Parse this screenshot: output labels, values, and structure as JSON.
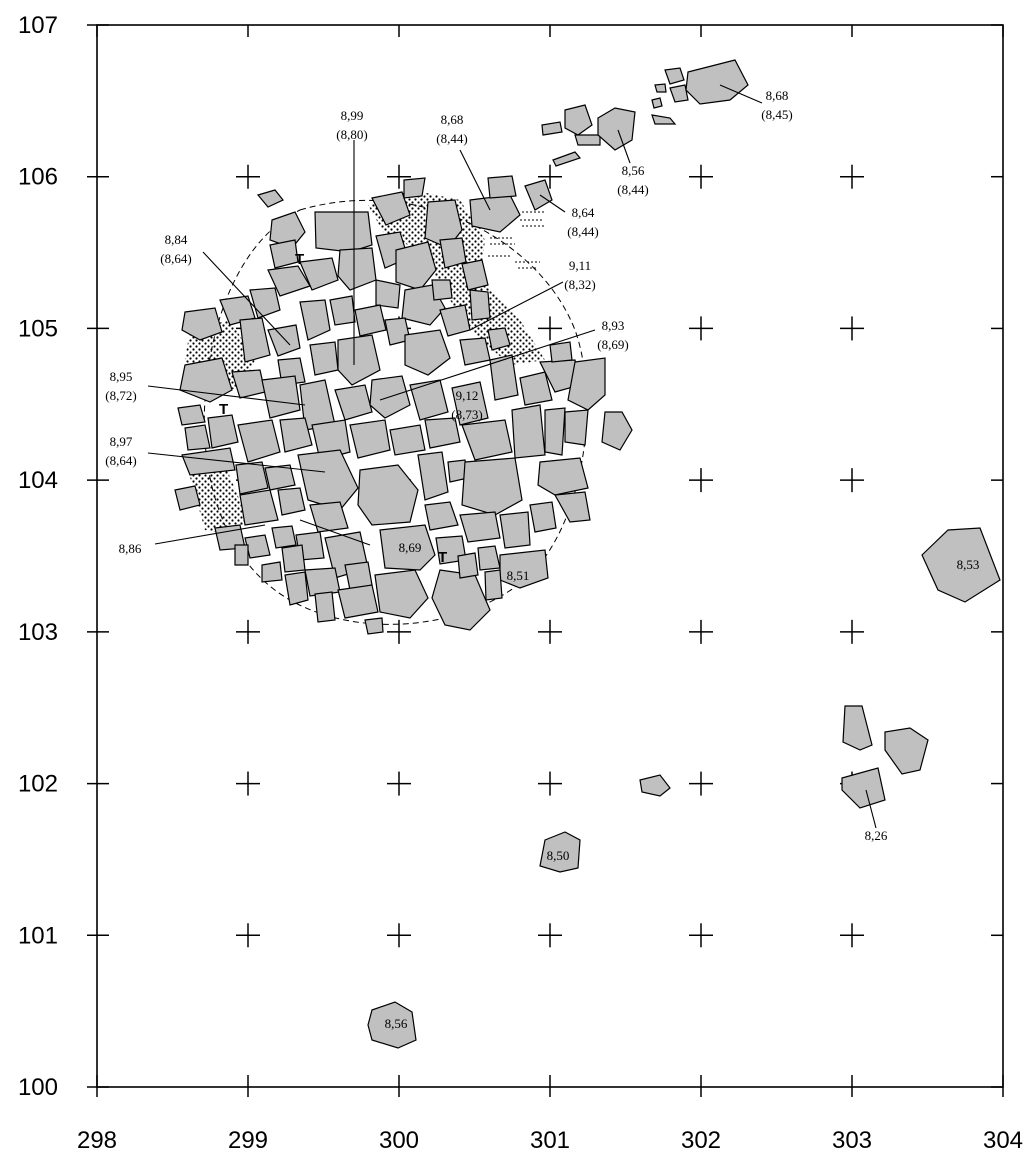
{
  "map": {
    "x_ticks": [
      "298",
      "299",
      "300",
      "301",
      "302",
      "303",
      "304"
    ],
    "y_ticks": [
      "100",
      "101",
      "102",
      "103",
      "104",
      "105",
      "106",
      "107"
    ],
    "x_range": [
      298,
      304
    ],
    "y_range": [
      100,
      107
    ],
    "stone_color": "#c0c0c0",
    "line_color": "#000000"
  },
  "labels": [
    {
      "text": "8,99",
      "sub": "(8,80)"
    },
    {
      "text": "8,68",
      "sub": "(8,44)"
    },
    {
      "text": "8,68",
      "sub": "(8,45)"
    },
    {
      "text": "8,56",
      "sub": "(8,44)"
    },
    {
      "text": "8,64",
      "sub": "(8,44)"
    },
    {
      "text": "8,84",
      "sub": "(8,64)"
    },
    {
      "text": "9,11",
      "sub": "(8,32)"
    },
    {
      "text": "8,93",
      "sub": "(8,69)"
    },
    {
      "text": "8,95",
      "sub": "(8,72)"
    },
    {
      "text": "9,12",
      "sub": "(8,73)"
    },
    {
      "text": "8,97",
      "sub": "(8,64)"
    },
    {
      "text": "8,86",
      "sub": ""
    },
    {
      "text": "8,69",
      "sub": ""
    },
    {
      "text": "8,51",
      "sub": ""
    },
    {
      "text": "8,53",
      "sub": ""
    },
    {
      "text": "8,26",
      "sub": ""
    },
    {
      "text": "8,50",
      "sub": ""
    },
    {
      "text": "8,56",
      "sub": ""
    }
  ],
  "marks": [
    "T",
    "T",
    "T"
  ]
}
